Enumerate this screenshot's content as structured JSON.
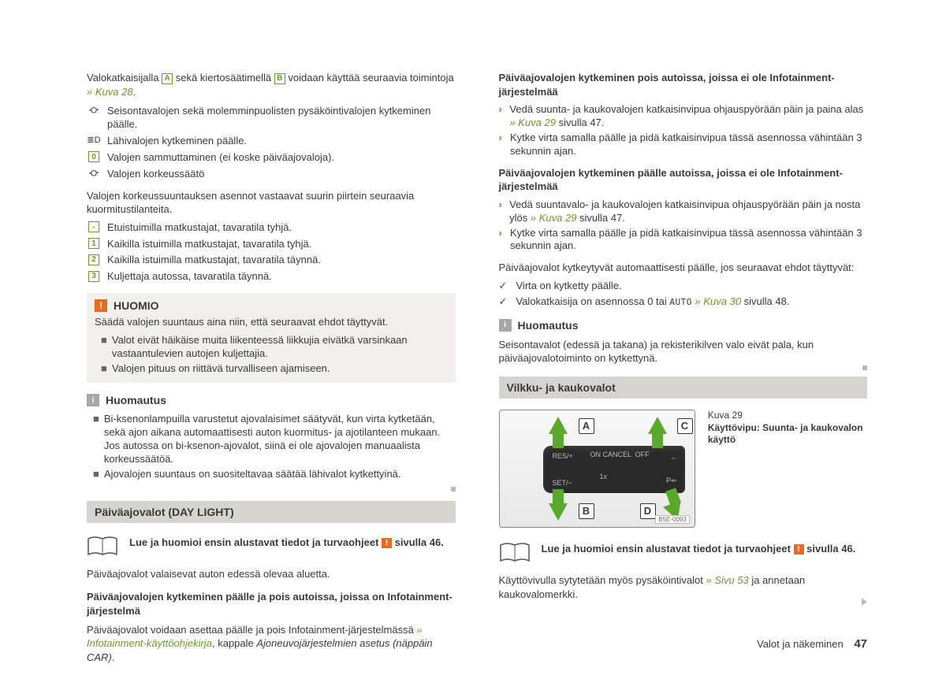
{
  "leftCol": {
    "intro_a": "Valokatkaisijalla ",
    "intro_box_A": "A",
    "intro_b": " sekä kiertosäätimellä ",
    "intro_box_B": "B",
    "intro_c": " voidaan käyttää seuraavia toimintoja ",
    "intro_link": "» Kuva 28",
    "intro_d": ".",
    "funcs": [
      {
        "sym": "⛮",
        "text": "Seisontavalojen sekä molemminpuolisten pysäköintivalojen kytkeminen päälle."
      },
      {
        "sym": "≣D",
        "text": "Lähivalojen kytkeminen päälle."
      },
      {
        "sym": "0",
        "boxed": true,
        "text": "Valojen sammuttaminen (ei koske päiväajovaloja)."
      },
      {
        "sym": "⛮",
        "text": "Valojen korkeussäätö"
      }
    ],
    "heightIntro": "Valojen korkeussuuntauksen asennot vastaavat suurin piirtein seuraavia kuormitustilanteita.",
    "positions": [
      {
        "n": "-",
        "text": "Etuistuimilla matkustajat, tavaratila tyhjä."
      },
      {
        "n": "1",
        "text": "Kaikilla istuimilla matkustajat, tavaratila tyhjä."
      },
      {
        "n": "2",
        "text": "Kaikilla istuimilla matkustajat, tavaratila täynnä."
      },
      {
        "n": "3",
        "text": "Kuljettaja autossa, tavaratila täynnä."
      }
    ],
    "huomio_title": "HUOMIO",
    "huomio_intro": "Säädä valojen suuntaus aina niin, että seuraavat ehdot täyttyvät.",
    "huomio_items": [
      "Valot eivät häikäise muita liikenteessä liikkujia eivätkä varsinkaan vastaantulevien autojen kuljettajia.",
      "Valojen pituus on riittävä turvalliseen ajamiseen."
    ],
    "huomautus_title": "Huomautus",
    "huomautus_items": [
      "Bi-ksenonlampuilla varustetut ajovalaisimet säätyvät, kun virta kytketään, sekä ajon aikana automaattisesti auton kuormitus- ja ajotilanteen mukaan. Jos autossa on bi-ksenon-ajovalot, siinä ei ole ajovalojen manuaalista korkeussäätöä.",
      "Ajovalojen suuntaus on suositeltavaa säätää lähivalot kytkettyinä."
    ],
    "daylight_title": "Päiväajovalot (DAY LIGHT)",
    "readfirst_a": "Lue ja huomioi ensin alustavat tiedot ja turvaohjeet ",
    "readfirst_b": " sivulla 46.",
    "daylight_p1": "Päiväajovalot valaisevat auton edessä olevaa aluetta.",
    "daylight_h1": "Päiväajovalojen kytkeminen päälle ja pois autoissa, joissa on Infotainment-järjestelmä",
    "daylight_p2a": "Päiväajovalot voidaan asettaa päälle ja pois Infotainment-järjestelmässä ",
    "daylight_p2b": "» Infotainment-käyttöohjekirja",
    "daylight_p2c": ", kappale ",
    "daylight_p2d": "Ajoneuvojärjestelmien asetus (näppäin CAR)"
  },
  "rightCol": {
    "h1": "Päiväajovalojen kytkeminen pois autoissa, joissa ei ole Infotainment-järjestelmää",
    "list1": [
      {
        "pre": "Vedä suunta- ja kaukovalojen katkaisinvipua ohjauspyörään päin ja paina alas ",
        "link": "» Kuva 29",
        "post": " sivulla 47."
      },
      {
        "pre": "Kytke virta samalla päälle ja pidä katkaisinvipua tässä asennossa vähintään 3 sekunnin ajan.",
        "link": "",
        "post": ""
      }
    ],
    "h2": "Päiväajovalojen kytkeminen päälle autoissa, joissa ei ole Infotainment-järjestelmää",
    "list2": [
      {
        "pre": "Vedä suuntavalo- ja kaukovalojen katkaisinvipua ohjauspyörään päin ja nosta ylös ",
        "link": "» Kuva 29",
        "post": " sivulla 47."
      },
      {
        "pre": "Kytke virta samalla päälle ja pidä katkaisinvipua tässä asennossa vähintään 3 sekunnin ajan.",
        "link": "",
        "post": ""
      }
    ],
    "autoP": "Päiväajovalot kytkeytyvät automaattisesti päälle, jos seuraavat ehdot täyttyvät:",
    "checks": [
      {
        "text_a": "Virta on kytketty päälle.",
        "link": "",
        "text_b": ""
      },
      {
        "text_a": "Valokatkaisija on asennossa 0 tai ",
        "auto": "AUTO",
        "link": " » Kuva 30",
        "text_b": " sivulla 48."
      }
    ],
    "huom_title": "Huomautus",
    "huom_p": "Seisontavalot (edessä ja takana) ja rekisterikilven valo eivät pala, kun päiväajovalotoiminto on kytkettynä.",
    "section2": "Vilkku- ja kaukovalot",
    "fig_num": "Kuva 29",
    "fig_cap": "Käyttövipu: Suunta- ja kaukovalon käyttö",
    "fig_tag": "B5E-0093",
    "readfirst_a": "Lue ja huomioi ensin alustavat tiedot ja turvaohjeet ",
    "readfirst_b": " sivulla 46.",
    "bottom_a": "Käyttövivulla sytytetään myös pysäköintivalot ",
    "bottom_link": "» Sivu 53",
    "bottom_b": " ja annetaan kaukovalomerkki.",
    "letters": {
      "A": "A",
      "B": "B",
      "C": "C",
      "D": "D"
    }
  },
  "footer": {
    "label": "Valot ja näkeminen",
    "page": "47"
  },
  "colors": {
    "green": "#6a9a2a",
    "orange": "#e86b20",
    "gray": "#a9a7a4"
  }
}
